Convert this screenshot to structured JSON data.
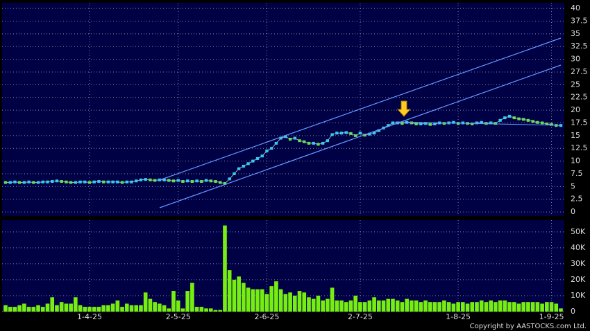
{
  "chart_data": [
    {
      "type": "line",
      "title": null,
      "categories": [
        null,
        null,
        null,
        null,
        null,
        null,
        null,
        null,
        null,
        null,
        null,
        null,
        null,
        null,
        null,
        null,
        null,
        null,
        "1-4-25",
        null,
        null,
        null,
        null,
        null,
        null,
        null,
        null,
        null,
        null,
        null,
        null,
        null,
        null,
        null,
        null,
        null,
        null,
        "2-5-25",
        null,
        null,
        null,
        null,
        null,
        null,
        null,
        null,
        null,
        null,
        null,
        null,
        null,
        null,
        null,
        null,
        null,
        null,
        "2-6-25",
        null,
        null,
        null,
        null,
        null,
        null,
        null,
        null,
        null,
        null,
        null,
        null,
        null,
        null,
        null,
        null,
        null,
        null,
        null,
        "2-7-25",
        null,
        null,
        null,
        null,
        null,
        null,
        null,
        null,
        null,
        null,
        null,
        null,
        null,
        null,
        null,
        null,
        null,
        null,
        null,
        null,
        "1-8-25",
        null,
        null,
        null,
        null,
        null,
        null,
        null,
        null,
        null,
        null,
        null,
        null,
        null,
        null,
        null,
        null,
        null,
        null,
        null,
        "1-9-25",
        null,
        null
      ],
      "series": [
        {
          "name": null,
          "color": "#33ccee",
          "values": [
            5.8,
            5.8,
            5.9,
            5.8,
            5.8,
            5.9,
            5.8,
            5.8,
            5.9,
            5.9,
            6.0,
            6.1,
            6.0,
            5.9,
            5.8,
            5.8,
            5.9,
            5.9,
            5.8,
            5.9,
            6.0,
            5.9,
            5.9,
            5.9,
            5.9,
            5.8,
            5.9,
            5.9,
            6.1,
            6.3,
            6.4,
            6.3,
            6.2,
            6.3,
            6.3,
            6.2,
            6.1,
            6.2,
            6.0,
            6.1,
            6.0,
            6.1,
            6.0,
            6.2,
            6.1,
            6.0,
            5.8,
            5.6,
            6.5,
            7.5,
            8.5,
            9.0,
            9.5,
            10.0,
            10.5,
            11.0,
            12.0,
            12.5,
            13.5,
            14.5,
            14.8,
            14.3,
            14.5,
            14.0,
            13.8,
            13.5,
            13.5,
            13.3,
            13.5,
            14.0,
            15.2,
            15.5,
            15.5,
            15.6,
            15.4,
            15.0,
            15.5,
            15.1,
            15.3,
            15.5,
            16.0,
            16.5,
            17.0,
            17.5,
            17.5,
            17.4,
            17.6,
            17.5,
            17.3,
            17.3,
            17.4,
            17.2,
            17.3,
            17.5,
            17.4,
            17.5,
            17.6,
            17.4,
            17.5,
            17.4,
            17.3,
            17.5,
            17.6,
            17.4,
            17.5,
            17.4,
            18.0,
            18.5,
            18.8,
            18.5,
            18.3,
            18.2,
            18.0,
            17.8,
            17.6,
            17.5,
            17.3,
            17.2,
            17.0,
            17.0
          ]
        }
      ],
      "ylim": [
        -0.8,
        41.1
      ],
      "yticks": [
        0,
        2.5,
        5,
        7.5,
        10,
        12.5,
        15,
        17.5,
        20,
        22.5,
        25,
        27.5,
        30,
        32.5,
        35,
        37.5,
        40
      ],
      "grid": true
    },
    {
      "type": "bar",
      "categories": [
        null,
        null,
        null,
        null,
        null,
        null,
        null,
        null,
        null,
        null,
        null,
        null,
        null,
        null,
        null,
        null,
        null,
        null,
        "1-4-25",
        null,
        null,
        null,
        null,
        null,
        null,
        null,
        null,
        null,
        null,
        null,
        null,
        null,
        null,
        null,
        null,
        null,
        null,
        "2-5-25",
        null,
        null,
        null,
        null,
        null,
        null,
        null,
        null,
        null,
        null,
        null,
        null,
        null,
        null,
        null,
        null,
        null,
        null,
        "2-6-25",
        null,
        null,
        null,
        null,
        null,
        null,
        null,
        null,
        null,
        null,
        null,
        null,
        null,
        null,
        null,
        null,
        null,
        null,
        null,
        "2-7-25",
        null,
        null,
        null,
        null,
        null,
        null,
        null,
        null,
        null,
        null,
        null,
        null,
        null,
        null,
        null,
        null,
        null,
        null,
        null,
        null,
        "1-8-25",
        null,
        null,
        null,
        null,
        null,
        null,
        null,
        null,
        null,
        null,
        null,
        null,
        null,
        null,
        null,
        null,
        null,
        null,
        null,
        "1-9-25",
        null,
        null
      ],
      "values": [
        4000,
        3000,
        3000,
        4000,
        5000,
        3000,
        3000,
        4000,
        3000,
        5000,
        9000,
        4000,
        6000,
        5000,
        5000,
        9000,
        4000,
        3000,
        3000,
        3000,
        3000,
        4000,
        4000,
        5000,
        7000,
        3000,
        5000,
        4000,
        4000,
        4000,
        12000,
        8000,
        6000,
        5000,
        4000,
        2000,
        13000,
        7000,
        2000,
        13000,
        18000,
        3000,
        3000,
        2000,
        2000,
        1000,
        1000,
        54000,
        26000,
        20000,
        22000,
        18000,
        15000,
        14000,
        14000,
        14000,
        11000,
        16000,
        19000,
        14000,
        11000,
        12000,
        10000,
        13000,
        12000,
        9000,
        8000,
        10000,
        7000,
        8000,
        15000,
        7000,
        7000,
        6000,
        7000,
        10000,
        6000,
        6000,
        7000,
        9000,
        7000,
        7000,
        8000,
        8000,
        7000,
        6000,
        8000,
        7000,
        7000,
        6000,
        7000,
        6000,
        6000,
        6000,
        7000,
        6000,
        5000,
        6000,
        6000,
        5000,
        6000,
        6000,
        7000,
        6000,
        7000,
        6000,
        7000,
        7000,
        6000,
        6000,
        5000,
        6000,
        6000,
        6000,
        6000,
        5000,
        6000,
        6000,
        5000,
        2000
      ],
      "color": "#77ee11",
      "ylim": [
        0,
        57300
      ],
      "yticks": [
        {
          "value": 0,
          "label": "0"
        },
        {
          "value": 10000,
          "label": "10K"
        },
        {
          "value": 20000,
          "label": "20K"
        },
        {
          "value": 30000,
          "label": "30K"
        },
        {
          "value": 40000,
          "label": "40K"
        },
        {
          "value": 50000,
          "label": "50K"
        }
      ],
      "grid": true
    }
  ],
  "footer": {
    "copyright": "Copyright by AASTOCKS.com Ltd."
  }
}
